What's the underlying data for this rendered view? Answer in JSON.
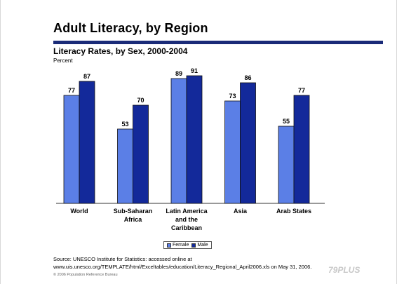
{
  "slide": {
    "title": "Adult Literacy, by Region",
    "subtitle": "Literacy Rates, by Sex, 2000-2004",
    "unit_label": "Percent",
    "source_line1": "Source: UNESCO Institute for Statistics: accessed online at",
    "source_line2": "www.uis.unesco.org/TEMPLATE/html/Exceltables/education/Literacy_Regional_April2006.xls on May 31, 2006.",
    "copyright": "© 2006 Population Reference Bureau",
    "watermark": "79PLUS"
  },
  "colors": {
    "female": "#5b7fe6",
    "male": "#13299a",
    "title_rule": "#1a2b78"
  },
  "legend": {
    "female_label": "Female",
    "male_label": "Male"
  },
  "chart_data": {
    "type": "bar",
    "title": "Literacy Rates, by Sex, 2000-2004",
    "ylabel": "Percent",
    "ylim": [
      0,
      100
    ],
    "grid": false,
    "legend_position": "bottom",
    "categories": [
      [
        "World"
      ],
      [
        "Sub-Saharan",
        "Africa"
      ],
      [
        "Latin America",
        "and the",
        "Caribbean"
      ],
      [
        "Asia"
      ],
      [
        "Arab States"
      ]
    ],
    "series": [
      {
        "name": "Female",
        "values": [
          77,
          53,
          89,
          73,
          55
        ]
      },
      {
        "name": "Male",
        "values": [
          87,
          70,
          91,
          86,
          77
        ]
      }
    ]
  }
}
